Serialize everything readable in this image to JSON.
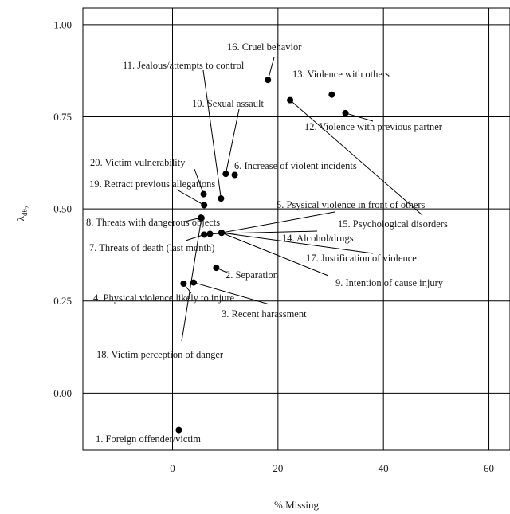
{
  "chart_data": {
    "type": "scatter",
    "xlabel": "% Missing",
    "ylabel": "λ_dθ_2",
    "xlim": [
      -17,
      64
    ],
    "ylim": [
      -0.155,
      1.045
    ],
    "x_ticks": [
      "0",
      "20",
      "40",
      "60"
    ],
    "x_tick_values": [
      0,
      20,
      40,
      60
    ],
    "y_ticks": [
      "1.00",
      "0.75",
      "0.50",
      "0.25",
      "0.00"
    ],
    "y_tick_values": [
      1.0,
      0.75,
      0.5,
      0.25,
      0.0
    ],
    "grid": true,
    "points": [
      {
        "label": "1. Foreign offender/victim",
        "x": 1.2,
        "y": -0.1
      },
      {
        "label": "2. Separation",
        "x": 8.3,
        "y": 0.34
      },
      {
        "label": "3. Recent harassment",
        "x": 4.0,
        "y": 0.3
      },
      {
        "label": "4. Physical violence likely to injure",
        "x": 2.1,
        "y": 0.297
      },
      {
        "label": "5. Psysical violence in front of others",
        "x": 9.3,
        "y": 0.435
      },
      {
        "label": "6. Increase of violent incidents",
        "x": 11.8,
        "y": 0.592
      },
      {
        "label": "7. Threats of death (last month)",
        "x": 6.0,
        "y": 0.43
      },
      {
        "label": "8. Threats with dangerous objects",
        "x": 5.4,
        "y": 0.476
      },
      {
        "label": "9. Intention of cause injury",
        "x": 9.3,
        "y": 0.435
      },
      {
        "label": "10. Sexual assault",
        "x": 10.1,
        "y": 0.595
      },
      {
        "label": "11. Jealous/attempts to control",
        "x": 9.2,
        "y": 0.528
      },
      {
        "label": "12. Violence with previous partner",
        "x": 32.8,
        "y": 0.76
      },
      {
        "label": "13. Violence with others",
        "x": 30.2,
        "y": 0.81
      },
      {
        "label": "14. Alcohol/drugs",
        "x": 7.1,
        "y": 0.432
      },
      {
        "label": "15. Psychological disorders",
        "x": 22.3,
        "y": 0.795
      },
      {
        "label": "16. Cruel behavior",
        "x": 18.1,
        "y": 0.85
      },
      {
        "label": "17. Justification of violence",
        "x": 9.3,
        "y": 0.435
      },
      {
        "label": "18. Victim perception of danger",
        "x": 5.5,
        "y": 0.475
      },
      {
        "label": "19. Retract previous allegations",
        "x": 6.0,
        "y": 0.51
      },
      {
        "label": "20. Victim vulnerability",
        "x": 5.9,
        "y": 0.54
      }
    ]
  }
}
